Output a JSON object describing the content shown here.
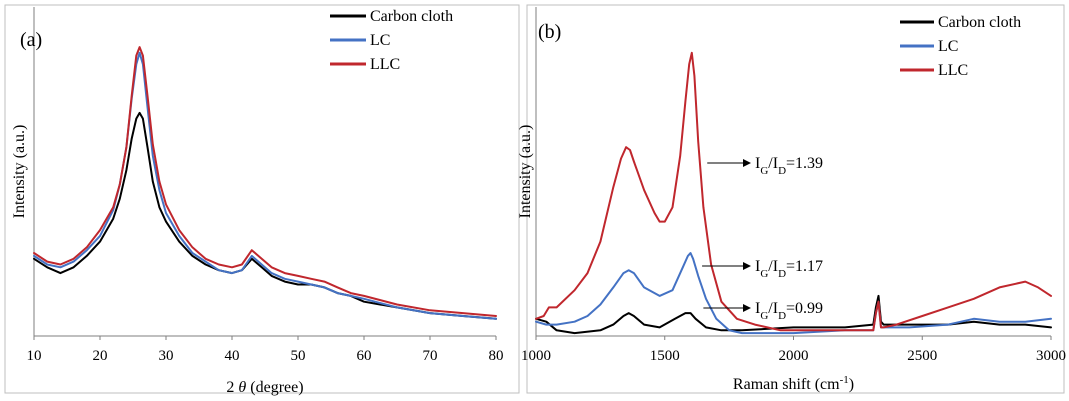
{
  "chart_data": [
    {
      "type": "line",
      "panel_label": "(a)",
      "xlabel": "2 θ (degree)",
      "ylabel": "Intensity (a.u.)",
      "xlim": [
        10,
        80
      ],
      "xticks": [
        10,
        20,
        30,
        40,
        50,
        60,
        70,
        80
      ],
      "y_ticks_shown": false,
      "grid": false,
      "legend_position": "top-right",
      "series": [
        {
          "name": "Carbon cloth",
          "color": "#000000",
          "x": [
            10,
            12,
            14,
            16,
            18,
            20,
            22,
            23,
            24,
            24.8,
            25.5,
            26,
            26.5,
            27.2,
            28,
            29,
            30,
            32,
            34,
            36,
            38,
            40,
            41.5,
            43,
            44.5,
            46,
            48,
            50,
            52,
            54,
            56,
            58,
            60,
            65,
            70,
            75,
            80
          ],
          "y": [
            0.27,
            0.24,
            0.22,
            0.24,
            0.28,
            0.33,
            0.41,
            0.48,
            0.58,
            0.69,
            0.76,
            0.78,
            0.76,
            0.66,
            0.54,
            0.45,
            0.4,
            0.33,
            0.28,
            0.25,
            0.23,
            0.22,
            0.23,
            0.27,
            0.24,
            0.21,
            0.19,
            0.18,
            0.18,
            0.17,
            0.15,
            0.14,
            0.12,
            0.1,
            0.08,
            0.07,
            0.06
          ]
        },
        {
          "name": "LC",
          "color": "#4472C4",
          "x": [
            10,
            12,
            14,
            16,
            18,
            20,
            22,
            23,
            24,
            24.8,
            25.5,
            26,
            26.5,
            27.2,
            28,
            29,
            30,
            32,
            34,
            36,
            38,
            40,
            41.5,
            43,
            44.5,
            46,
            48,
            50,
            52,
            54,
            56,
            58,
            60,
            65,
            70,
            75,
            80
          ],
          "y": [
            0.28,
            0.25,
            0.24,
            0.26,
            0.3,
            0.35,
            0.44,
            0.53,
            0.66,
            0.83,
            0.95,
            0.99,
            0.95,
            0.8,
            0.63,
            0.51,
            0.43,
            0.35,
            0.29,
            0.26,
            0.23,
            0.22,
            0.23,
            0.28,
            0.25,
            0.22,
            0.2,
            0.19,
            0.18,
            0.17,
            0.15,
            0.14,
            0.13,
            0.1,
            0.08,
            0.07,
            0.06
          ]
        },
        {
          "name": "LLC",
          "color": "#C0272D",
          "x": [
            10,
            12,
            14,
            16,
            18,
            20,
            22,
            23,
            24,
            24.8,
            25.5,
            26,
            26.5,
            27.2,
            28,
            29,
            30,
            32,
            34,
            36,
            38,
            40,
            41.5,
            43,
            44.5,
            46,
            48,
            50,
            52,
            54,
            56,
            58,
            60,
            65,
            70,
            75,
            80
          ],
          "y": [
            0.29,
            0.26,
            0.25,
            0.27,
            0.31,
            0.37,
            0.45,
            0.53,
            0.66,
            0.84,
            0.98,
            1.01,
            0.98,
            0.84,
            0.67,
            0.54,
            0.46,
            0.37,
            0.31,
            0.27,
            0.25,
            0.24,
            0.25,
            0.3,
            0.27,
            0.24,
            0.22,
            0.21,
            0.2,
            0.19,
            0.17,
            0.15,
            0.14,
            0.11,
            0.09,
            0.08,
            0.07
          ]
        }
      ]
    },
    {
      "type": "line",
      "panel_label": "(b)",
      "xlabel": "Raman shift (cm",
      "xlabel_superscript": "-1",
      "xlabel_suffix": ")",
      "ylabel": "Intensity (a.u.)",
      "xlim": [
        1000,
        3000
      ],
      "xticks": [
        1000,
        1500,
        2000,
        2500,
        3000
      ],
      "y_ticks_shown": false,
      "grid": false,
      "legend_position": "top-right",
      "series": [
        {
          "name": "Carbon cloth",
          "color": "#000000",
          "x": [
            1000,
            1040,
            1080,
            1150,
            1250,
            1300,
            1340,
            1360,
            1380,
            1420,
            1480,
            1540,
            1580,
            1600,
            1620,
            1660,
            1720,
            1800,
            2000,
            2200,
            2310,
            2320,
            2330,
            2340,
            2350,
            2450,
            2600,
            2700,
            2800,
            2900,
            3000
          ],
          "y": [
            0.06,
            0.05,
            0.02,
            0.01,
            0.02,
            0.04,
            0.07,
            0.08,
            0.07,
            0.04,
            0.03,
            0.06,
            0.08,
            0.08,
            0.06,
            0.03,
            0.02,
            0.02,
            0.03,
            0.03,
            0.04,
            0.1,
            0.14,
            0.05,
            0.04,
            0.04,
            0.04,
            0.05,
            0.04,
            0.04,
            0.03
          ]
        },
        {
          "name": "LC",
          "color": "#4472C4",
          "x": [
            1000,
            1040,
            1080,
            1150,
            1200,
            1250,
            1300,
            1340,
            1360,
            1380,
            1420,
            1480,
            1530,
            1570,
            1590,
            1600,
            1610,
            1630,
            1660,
            1700,
            1750,
            1800,
            1900,
            2000,
            2200,
            2310,
            2320,
            2330,
            2340,
            2350,
            2450,
            2600,
            2700,
            2800,
            2900,
            3000
          ],
          "y": [
            0.05,
            0.04,
            0.04,
            0.05,
            0.07,
            0.11,
            0.17,
            0.22,
            0.23,
            0.22,
            0.17,
            0.14,
            0.16,
            0.24,
            0.28,
            0.29,
            0.27,
            0.21,
            0.13,
            0.06,
            0.02,
            0.01,
            0.01,
            0.01,
            0.02,
            0.02,
            0.08,
            0.12,
            0.03,
            0.03,
            0.03,
            0.04,
            0.06,
            0.05,
            0.05,
            0.06
          ]
        },
        {
          "name": "LLC",
          "color": "#C0272D",
          "x": [
            1000,
            1030,
            1050,
            1080,
            1150,
            1200,
            1250,
            1300,
            1330,
            1350,
            1365,
            1380,
            1420,
            1460,
            1480,
            1500,
            1530,
            1560,
            1580,
            1595,
            1605,
            1615,
            1630,
            1650,
            1680,
            1720,
            1780,
            1850,
            1950,
            2050,
            2150,
            2250,
            2310,
            2320,
            2330,
            2340,
            2350,
            2400,
            2500,
            2600,
            2700,
            2800,
            2900,
            2950,
            3000
          ],
          "y": [
            0.06,
            0.07,
            0.1,
            0.1,
            0.16,
            0.22,
            0.33,
            0.52,
            0.62,
            0.66,
            0.65,
            0.61,
            0.51,
            0.43,
            0.4,
            0.4,
            0.45,
            0.63,
            0.82,
            0.95,
            0.99,
            0.91,
            0.68,
            0.45,
            0.25,
            0.12,
            0.06,
            0.04,
            0.02,
            0.02,
            0.02,
            0.02,
            0.02,
            0.08,
            0.12,
            0.03,
            0.03,
            0.04,
            0.07,
            0.1,
            0.13,
            0.17,
            0.19,
            0.17,
            0.14
          ]
        }
      ],
      "annotations": [
        {
          "main": "I",
          "sub1": "G",
          "mid": "/I",
          "sub2": "D",
          "value": "=1.39",
          "arrow_from": [
            1665,
            0.61
          ]
        },
        {
          "main": "I",
          "sub1": "G",
          "mid": "/I",
          "sub2": "D",
          "value": "=1.17",
          "arrow_from": [
            1645,
            0.22
          ]
        },
        {
          "main": "I",
          "sub1": "G",
          "mid": "/I",
          "sub2": "D",
          "value": "=0.99",
          "arrow_from": [
            1650,
            0.06
          ]
        }
      ]
    }
  ]
}
